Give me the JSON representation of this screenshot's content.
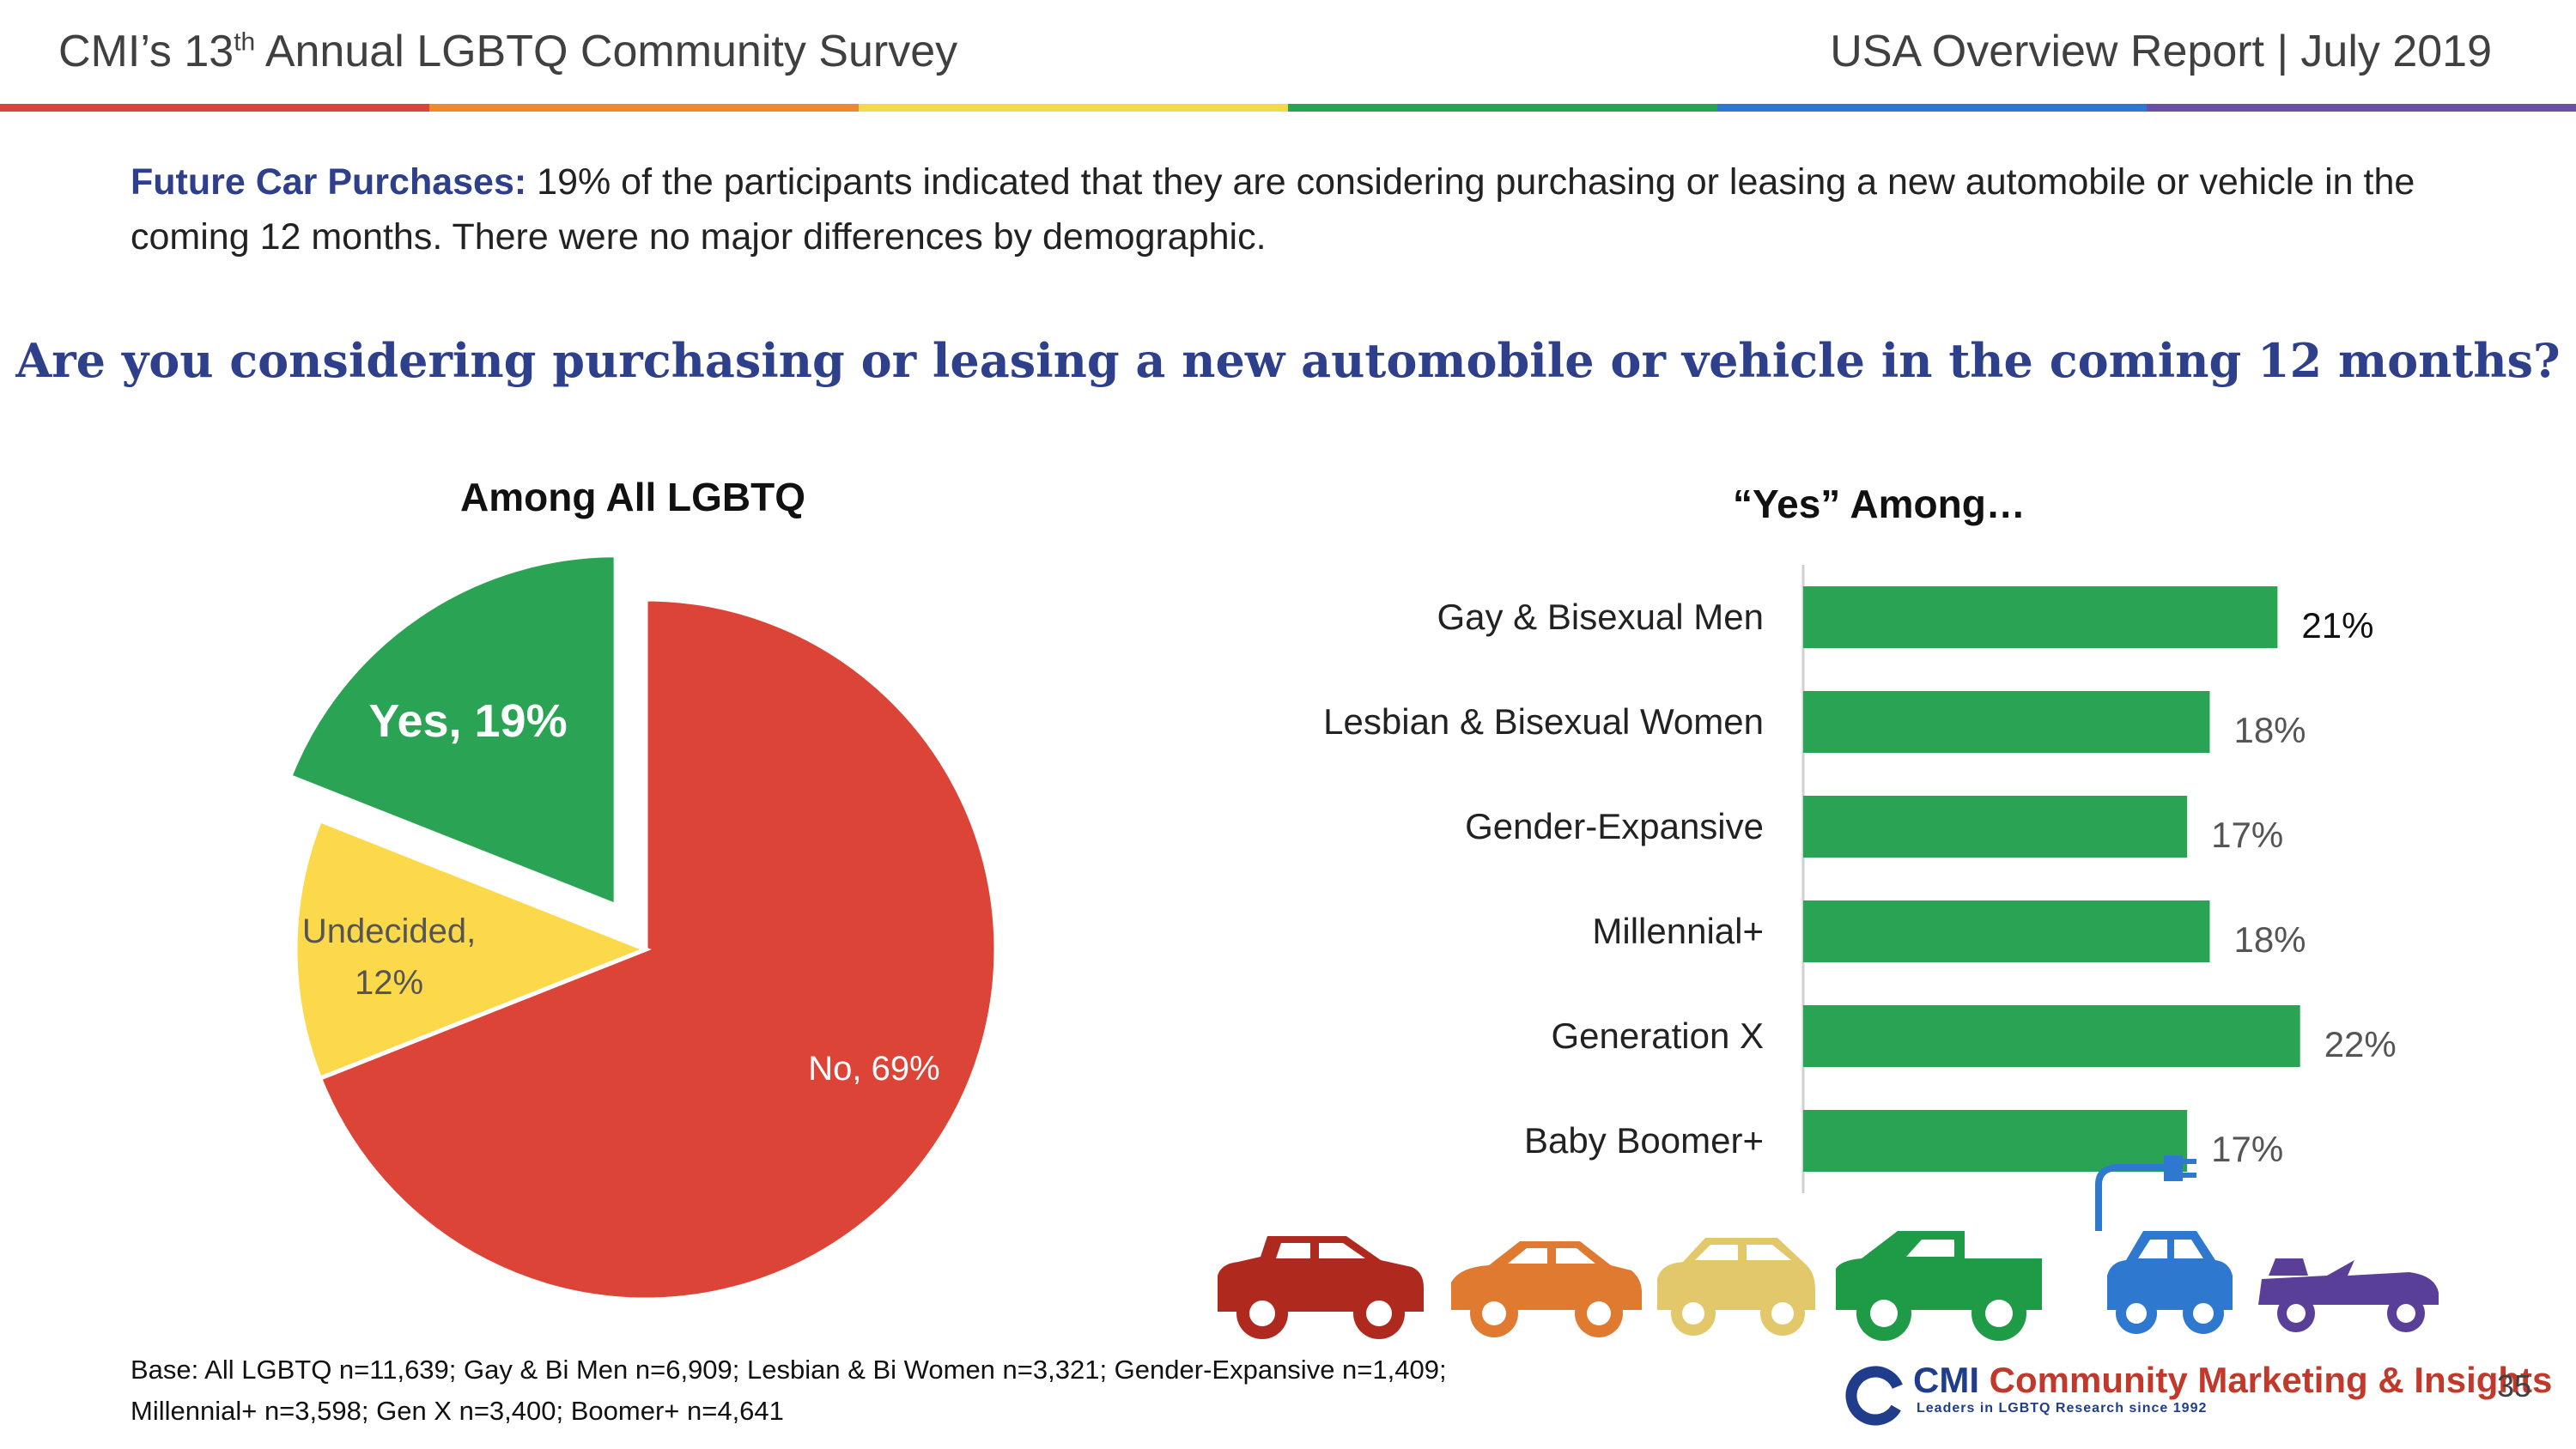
{
  "header": {
    "left_prefix": "CMI’s 13",
    "left_sup": "th",
    "left_suffix": " Annual LGBTQ Community Survey",
    "right": "USA Overview Report | July 2019"
  },
  "rainbow_colors": [
    "#d9453b",
    "#ee8a2e",
    "#f4d94a",
    "#2aa454",
    "#2f78d0",
    "#6a4fa3"
  ],
  "intro": {
    "lead": "Future Car Purchases:",
    "text": " 19% of the participants indicated that they are considering purchasing or leasing a new automobile or vehicle in the coming 12 months. There were no major differences by demographic."
  },
  "question": "Are you considering purchasing or leasing a new automobile or vehicle in the coming 12 months?",
  "chart_data": [
    {
      "type": "pie",
      "title": "Among All LGBTQ",
      "slices": [
        {
          "label": "Yes, 19%",
          "value": 19,
          "color": "#2aa454",
          "exploded": true
        },
        {
          "label": "No, 69%",
          "value": 69,
          "color": "#db4437"
        },
        {
          "label": "Undecided, 12%",
          "label_lines": [
            "Undecided,",
            "12%"
          ],
          "value": 12,
          "color": "#fbd94b"
        }
      ]
    },
    {
      "type": "bar",
      "orientation": "horizontal",
      "title": "“Yes” Among…",
      "categories": [
        "Gay & Bisexual Men",
        "Lesbian & Bisexual Women",
        "Gender-Expansive",
        "Millennial+",
        "Generation X",
        "Baby Boomer+"
      ],
      "values": [
        21,
        18,
        17,
        18,
        22,
        17
      ],
      "value_labels": [
        "21%",
        "18%",
        "17%",
        "18%",
        "22%",
        "17%"
      ],
      "color": "#2aa454",
      "xlim": [
        0,
        23
      ]
    }
  ],
  "car_icons": [
    {
      "icon": "suv-icon",
      "color": "#b0291f"
    },
    {
      "icon": "sedan-icon",
      "color": "#e07a30"
    },
    {
      "icon": "hatchback-icon",
      "color": "#e2c86a"
    },
    {
      "icon": "pickup-truck-icon",
      "color": "#1f9a47"
    },
    {
      "icon": "electric-car-icon",
      "color": "#2f78d0"
    },
    {
      "icon": "convertible-icon",
      "color": "#5a3f98"
    }
  ],
  "footnote": {
    "line1": "Base: All LGBTQ n=11,639; Gay & Bi Men n=6,909; Lesbian & Bi Women n=3,321; Gender-Expansive n=1,409;",
    "line2": "Millennial+ n=3,598; Gen X n=3,400; Boomer+ n=4,641"
  },
  "logo": {
    "abbr": "CMI",
    "name": "Community Marketing & Insights",
    "tagline": "Leaders in LGBTQ Research since 1992"
  },
  "page_number": "35"
}
